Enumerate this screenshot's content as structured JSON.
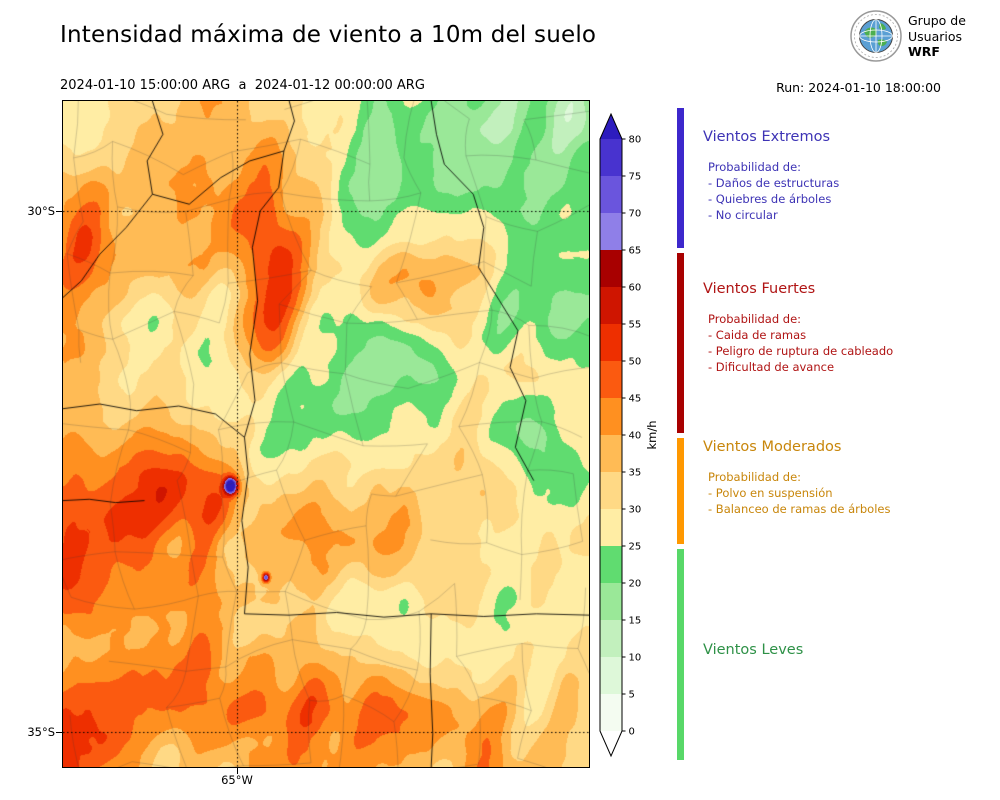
{
  "header": {
    "title": "Intensidad máxima de viento a 10m del suelo",
    "period": "2024-01-10 15:00:00 ARG  a  2024-01-12 00:00:00 ARG",
    "run": "Run: 2024-01-10 18:00:00",
    "logo": {
      "line1": "Grupo de",
      "line2": "Usuarios",
      "line3": "WRF"
    }
  },
  "map": {
    "lat_labels": [
      "30°S",
      "35°S"
    ],
    "lon_label": "65°W"
  },
  "colorbar": {
    "unit": "km/h",
    "ticks": [
      0,
      5,
      10,
      15,
      20,
      25,
      30,
      35,
      40,
      45,
      50,
      55,
      60,
      65,
      70,
      75,
      80
    ],
    "bin_colors": [
      "#f4fcf1",
      "#def8d9",
      "#c2f0bd",
      "#9ae898",
      "#60dc70",
      "#ffeda4",
      "#ffd985",
      "#ffbb55",
      "#ff9020",
      "#fb5a10",
      "#ee2f00",
      "#cf1500",
      "#a80000",
      "#8f7fe8",
      "#6a55dd",
      "#4833cf"
    ],
    "over_color": "#2d1cbe",
    "under_color": "#ffffff"
  },
  "legend": {
    "sections": [
      {
        "title": "Vientos Extremos",
        "color": "#3d33b5",
        "bar_color": "#3d28cc",
        "subtitle": "Probabilidad de:",
        "items": [
          "- Daños de estructuras",
          "- Quiebres de árboles",
          "- No circular"
        ]
      },
      {
        "title": "Vientos Fuertes",
        "color": "#b01414",
        "bar_color": "#a80000",
        "subtitle": "Probabilidad de:",
        "items": [
          "- Caida de ramas",
          "- Peligro de ruptura de cableado",
          "- Dificultad de avance"
        ]
      },
      {
        "title": "Vientos Moderados",
        "color": "#c8860b",
        "bar_color": "#ff9800",
        "subtitle": "Probabilidad de:",
        "items": [
          "- Polvo en suspensión",
          "- Balanceo de ramas de árboles"
        ]
      },
      {
        "title": "Vientos Leves",
        "color": "#2e9147",
        "bar_color": "#58d868",
        "subtitle": "",
        "items": []
      }
    ]
  }
}
